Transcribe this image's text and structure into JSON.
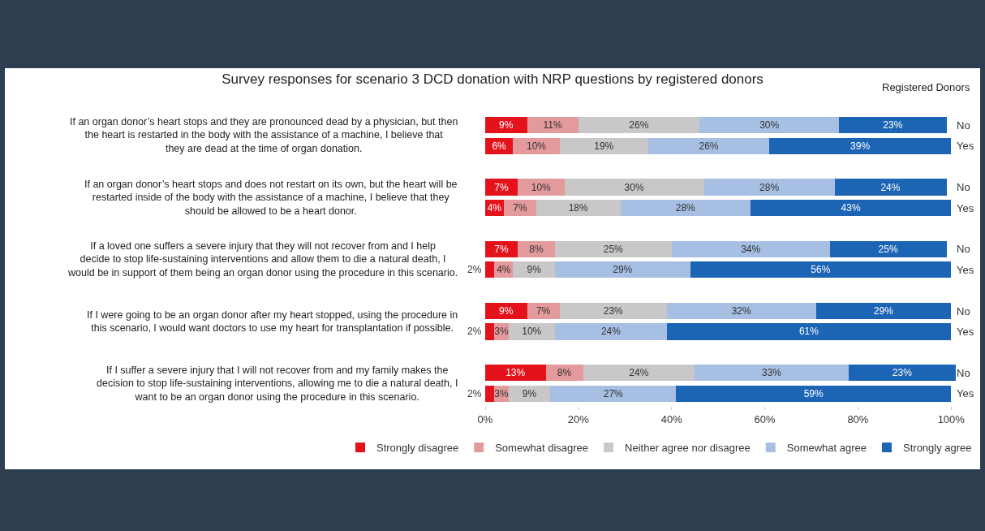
{
  "chart_data": {
    "type": "bar",
    "orientation": "horizontal",
    "stacked": true,
    "title": "Survey responses for scenario 3 DCD donation with NRP questions by registered donors",
    "categories": [
      "No",
      "Yes",
      "No",
      "Yes",
      "No",
      "Yes",
      "No",
      "Yes",
      "No",
      "Yes"
    ],
    "series": [
      {
        "name": "Strongly disagree",
        "color": "#e3121b",
        "values": [
          9,
          6,
          7,
          4,
          7,
          2,
          9,
          2,
          13,
          2
        ],
        "value_labels": [
          "9%",
          "6%",
          "7%",
          "4%",
          "7%",
          "2%",
          "9%",
          "2%",
          "13%",
          "2%"
        ]
      },
      {
        "name": "Somewhat disagree",
        "color": "#e39a9c",
        "values": [
          11,
          10,
          10,
          7,
          8,
          4,
          7,
          3,
          8,
          3
        ],
        "value_labels": [
          "11%",
          "10%",
          "10%",
          "7%",
          "8%",
          "4%",
          "7%",
          "3%",
          "8%",
          "3%"
        ]
      },
      {
        "name": "Neither agree nor disagree",
        "color": "#c9c7c7",
        "values": [
          26,
          19,
          30,
          18,
          25,
          9,
          23,
          10,
          24,
          9
        ],
        "value_labels": [
          "26%",
          "19%",
          "30%",
          "18%",
          "25%",
          "9%",
          "23%",
          "10%",
          "24%",
          "9%"
        ]
      },
      {
        "name": "Somewhat agree",
        "color": "#a6bfe3",
        "values": [
          30,
          26,
          28,
          28,
          34,
          29,
          32,
          24,
          33,
          27
        ],
        "value_labels": [
          "30%",
          "26%",
          "28%",
          "28%",
          "34%",
          "29%",
          "32%",
          "24%",
          "33%",
          "27%"
        ]
      },
      {
        "name": "Strongly agree",
        "color": "#1c64b4",
        "values": [
          23,
          39,
          24,
          43,
          25,
          56,
          29,
          61,
          23,
          59
        ],
        "value_labels": [
          "23%",
          "39%",
          "24%",
          "43%",
          "25%",
          "56%",
          "29%",
          "61%",
          "23%",
          "59%"
        ]
      }
    ],
    "xlim": [
      0,
      101
    ],
    "xticks": [
      {
        "value": 0,
        "label": "0%"
      },
      {
        "value": 20,
        "label": "20%"
      },
      {
        "value": 40,
        "label": "40%"
      },
      {
        "value": 60,
        "label": "60%"
      },
      {
        "value": 80,
        "label": "80%"
      },
      {
        "value": 100,
        "label": "100%"
      }
    ],
    "legend": "bottom",
    "grid": false,
    "annotations": [
      "Registered Donors",
      "If an organ donor’s heart stops and they are pronounced dead by a physician, but then the heart is restarted in the body with the assistance of a machine, I believe that they are dead at the time of organ donation.",
      "If an organ donor’s heart stops and does not restart on its own, but the heart will be restarted inside of the body with the assistance of a machine, I believe that they should be allowed to be a heart donor.",
      "If a loved one suffers a severe injury that they will not recover from and I help decide to stop life-sustaining interventions and allow them to die a natural death, I would be in support of them being an organ donor using the procedure in this scenario.",
      "If I were going to be an organ donor after my heart stopped, using the procedure in this scenario, I would want doctors to use my heart for transplantation if possible.",
      "If I suffer a severe injury that I will not recover from and my family makes the decision to stop life-sustaining interventions, allowing me to die a natural death, I want to be an organ donor using the procedure in this scenario."
    ]
  }
}
